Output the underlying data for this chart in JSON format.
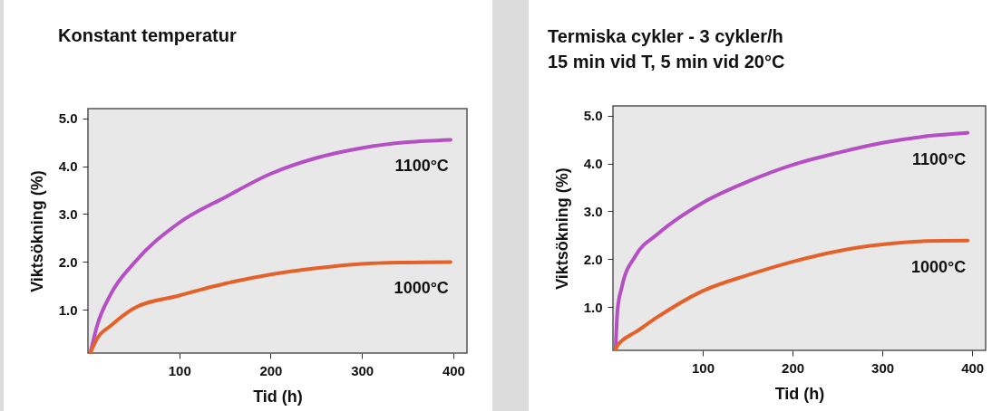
{
  "chart_data": [
    {
      "type": "line",
      "title": "Konstant temperatur",
      "xlabel": "Tid (h)",
      "ylabel": "Viktsökning (%)",
      "x": [
        3,
        10,
        25,
        50,
        100,
        150,
        200,
        250,
        300,
        350,
        397
      ],
      "series": [
        {
          "name": "1100°C",
          "color": "#b44fc4",
          "values": [
            0.13,
            0.67,
            1.33,
            1.97,
            2.82,
            3.35,
            3.84,
            4.17,
            4.38,
            4.5,
            4.55
          ]
        },
        {
          "name": "1000°C",
          "color": "#e4622a",
          "values": [
            0.12,
            0.4,
            0.67,
            1.03,
            1.3,
            1.55,
            1.74,
            1.87,
            1.96,
            1.99,
            2.0
          ]
        }
      ],
      "xlim": [
        0,
        415
      ],
      "ylim": [
        0.1,
        5.2
      ],
      "xticks": [
        100,
        200,
        300,
        400
      ],
      "yticks": [
        {
          "value": 1,
          "label": "1.0"
        },
        {
          "value": 2,
          "label": "2.0"
        },
        {
          "value": 3,
          "label": "3.0"
        },
        {
          "value": 4,
          "label": "4.0"
        },
        {
          "value": 5,
          "label": "5.0"
        }
      ]
    },
    {
      "type": "line",
      "title": "Termiska cykler - 3 cykler/h",
      "subtitle": "15 min vid T, 5 min vid 20°C",
      "xlabel": "Tid (h)",
      "ylabel": "Viktsökning (%)",
      "x": [
        3,
        5,
        10,
        25,
        50,
        100,
        150,
        200,
        250,
        300,
        350,
        395
      ],
      "series": [
        {
          "name": "1100°C",
          "color": "#b44fc4",
          "values": [
            0.15,
            0.93,
            1.43,
            2.07,
            2.53,
            3.18,
            3.62,
            3.97,
            4.22,
            4.43,
            4.57,
            4.64
          ]
        },
        {
          "name": "1000°C",
          "color": "#e4622a",
          "values": [
            0.12,
            0.2,
            0.3,
            0.48,
            0.8,
            1.34,
            1.67,
            1.95,
            2.17,
            2.31,
            2.38,
            2.39
          ]
        }
      ],
      "xlim": [
        0,
        415
      ],
      "ylim": [
        0.1,
        5.2
      ],
      "xticks": [
        100,
        200,
        300,
        400
      ],
      "yticks": [
        {
          "value": 1,
          "label": "1.0"
        },
        {
          "value": 2,
          "label": "2.0"
        },
        {
          "value": 3,
          "label": "3.0"
        },
        {
          "value": 4,
          "label": "4.0"
        },
        {
          "value": 5,
          "label": "5.0"
        }
      ]
    }
  ]
}
